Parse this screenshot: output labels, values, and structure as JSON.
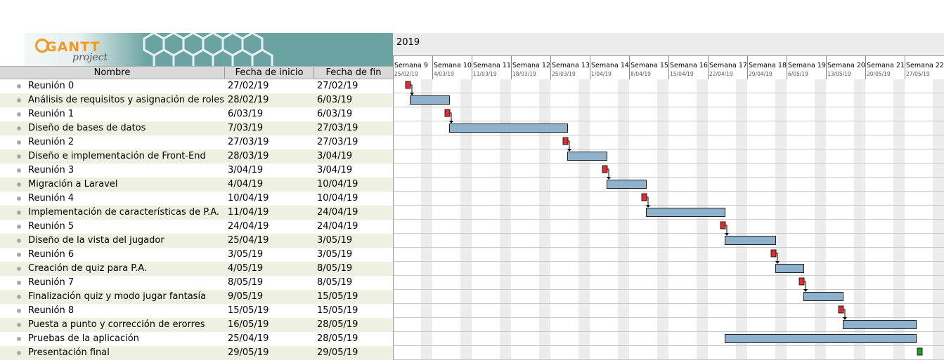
{
  "app": {
    "logo_text": "GANTT",
    "logo_subtext": "project"
  },
  "table": {
    "headers": {
      "name": "Nombre",
      "start": "Fecha de inicio",
      "end": "Fecha de fin"
    },
    "tasks": [
      {
        "name": "Reunión 0",
        "start": "27/02/19",
        "end": "27/02/19",
        "milestone": true
      },
      {
        "name": "Análisis de requisitos y asignación de roles",
        "start": "28/02/19",
        "end": "6/03/19"
      },
      {
        "name": "Reunión 1",
        "start": "6/03/19",
        "end": "6/03/19",
        "milestone": true
      },
      {
        "name": "Diseño de bases de datos",
        "start": "7/03/19",
        "end": "27/03/19"
      },
      {
        "name": "Reunión 2",
        "start": "27/03/19",
        "end": "27/03/19",
        "milestone": true
      },
      {
        "name": "Diseño e implementación de Front-End",
        "start": "28/03/19",
        "end": "3/04/19"
      },
      {
        "name": "Reunión 3",
        "start": "3/04/19",
        "end": "3/04/19",
        "milestone": true
      },
      {
        "name": "Migración a Laravel",
        "start": "4/04/19",
        "end": "10/04/19"
      },
      {
        "name": "Reunión 4",
        "start": "10/04/19",
        "end": "10/04/19",
        "milestone": true
      },
      {
        "name": "Implementación de características de P.A.",
        "start": "11/04/19",
        "end": "24/04/19"
      },
      {
        "name": "Reunión 5",
        "start": "24/04/19",
        "end": "24/04/19",
        "milestone": true
      },
      {
        "name": "Diseño de la vista del jugador",
        "start": "25/04/19",
        "end": "3/05/19"
      },
      {
        "name": "Reunión 6",
        "start": "3/05/19",
        "end": "3/05/19",
        "milestone": true
      },
      {
        "name": "Creación de quiz para P.A.",
        "start": "4/05/19",
        "end": "8/05/19"
      },
      {
        "name": "Reunión 7",
        "start": "8/05/19",
        "end": "8/05/19",
        "milestone": true
      },
      {
        "name": "Finalización quiz y modo jugar fantasía",
        "start": "9/05/19",
        "end": "15/05/19"
      },
      {
        "name": "Reunión 8",
        "start": "15/05/19",
        "end": "15/05/19",
        "milestone": true
      },
      {
        "name": "Puesta a punto y corrección de erorres",
        "start": "16/05/19",
        "end": "28/05/19"
      },
      {
        "name": "Pruebas de la aplicación",
        "start": "25/04/19",
        "end": "28/05/19"
      },
      {
        "name": "Presentación final",
        "start": "29/05/19",
        "end": "29/05/19",
        "final": true
      }
    ]
  },
  "timeline": {
    "year": "2019",
    "weeks": [
      {
        "label": "Semana 9",
        "date": "25/02/19"
      },
      {
        "label": "Semana 10",
        "date": "4/03/19"
      },
      {
        "label": "Semana 11",
        "date": "11/03/19"
      },
      {
        "label": "Semana 12",
        "date": "18/03/19"
      },
      {
        "label": "Semana 13",
        "date": "25/03/19"
      },
      {
        "label": "Semana 14",
        "date": "1/04/19"
      },
      {
        "label": "Semana 15",
        "date": "8/04/19"
      },
      {
        "label": "Semana 16",
        "date": "15/04/19"
      },
      {
        "label": "Semana 17",
        "date": "22/04/19"
      },
      {
        "label": "Semana 18",
        "date": "29/04/19"
      },
      {
        "label": "Semana 19",
        "date": "6/05/19"
      },
      {
        "label": "Semana 20",
        "date": "13/05/19"
      },
      {
        "label": "Semana 21",
        "date": "20/05/19"
      },
      {
        "label": "Semana 22",
        "date": "27/05/19"
      }
    ]
  },
  "colors": {
    "task_bar": "#8fb1cc",
    "task_bar_border": "#1f1f1f",
    "milestone": "#e32b2b",
    "final": "#1f9e1f",
    "weekend": "#ececec",
    "row_alt": "#efefe2",
    "logo_bg": "#6aa3a1",
    "logo_orange": "#f39a1d"
  }
}
